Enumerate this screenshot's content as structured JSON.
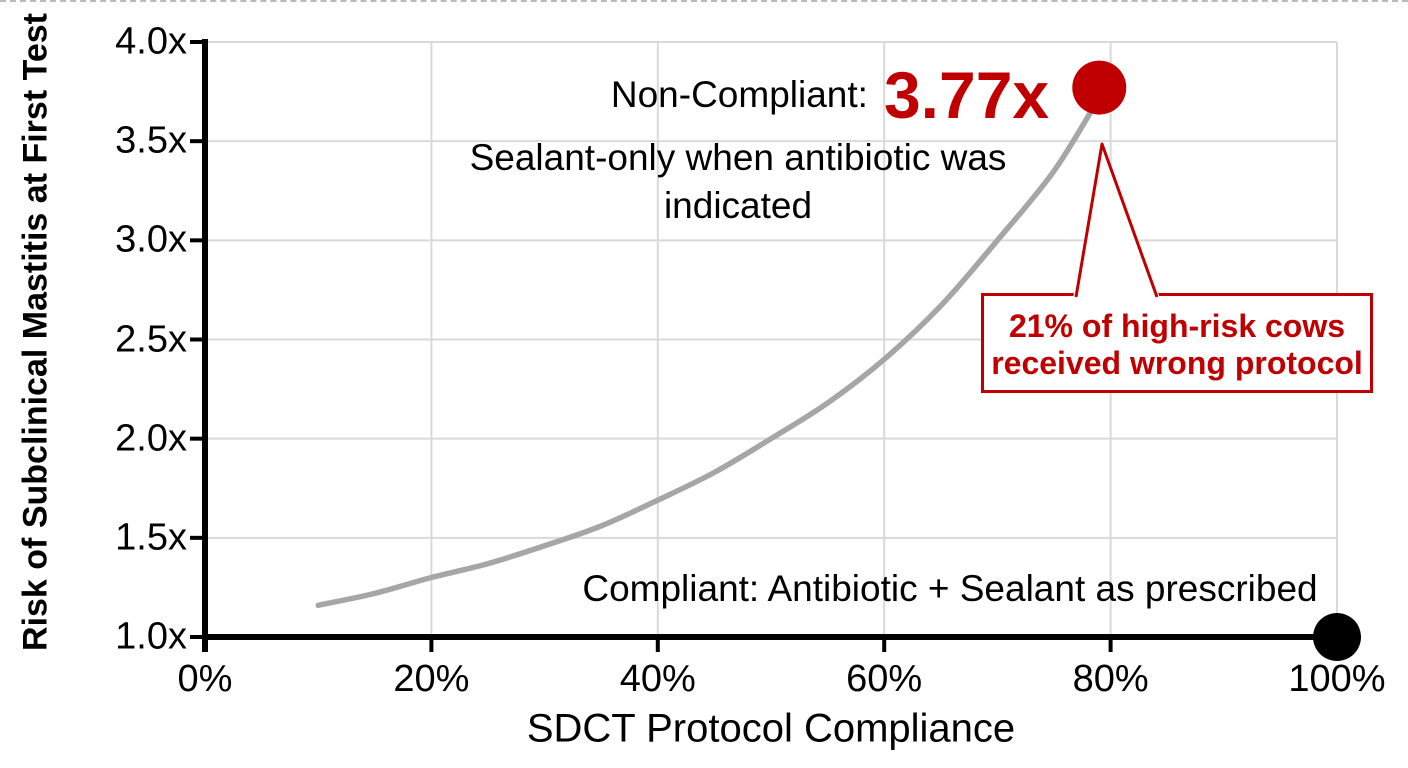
{
  "colors": {
    "red": "#c00000",
    "black": "#000000",
    "curve_gray": "#a6a6a6",
    "gridline_gray": "#d9d9d9",
    "background": "#ffffff"
  },
  "chart_data": {
    "type": "line",
    "title": "",
    "xlabel": "SDCT Protocol Compliance",
    "ylabel": "Risk of Subclinical Mastitis at First Test",
    "xlim": [
      0,
      100
    ],
    "ylim": [
      1.0,
      4.0
    ],
    "grid": true,
    "x_ticks": [
      {
        "value": 0,
        "label": "0%"
      },
      {
        "value": 20,
        "label": "20%"
      },
      {
        "value": 40,
        "label": "40%"
      },
      {
        "value": 60,
        "label": "60%"
      },
      {
        "value": 80,
        "label": "80%"
      },
      {
        "value": 100,
        "label": "100%"
      }
    ],
    "y_ticks": [
      {
        "value": 1.0,
        "label": "1.0x"
      },
      {
        "value": 1.5,
        "label": "1.5x"
      },
      {
        "value": 2.0,
        "label": "2.0x"
      },
      {
        "value": 2.5,
        "label": "2.5x"
      },
      {
        "value": 3.0,
        "label": "3.0x"
      },
      {
        "value": 3.5,
        "label": "3.5x"
      },
      {
        "value": 4.0,
        "label": "4.0x"
      }
    ],
    "series": [
      {
        "name": "risk-curve",
        "type": "line",
        "color": "#a6a6a6",
        "points": [
          [
            10,
            1.16
          ],
          [
            15,
            1.22
          ],
          [
            20,
            1.3
          ],
          [
            25,
            1.37
          ],
          [
            30,
            1.46
          ],
          [
            35,
            1.56
          ],
          [
            40,
            1.69
          ],
          [
            45,
            1.83
          ],
          [
            50,
            2.0
          ],
          [
            55,
            2.18
          ],
          [
            60,
            2.4
          ],
          [
            65,
            2.67
          ],
          [
            70,
            3.0
          ],
          [
            75,
            3.35
          ],
          [
            79,
            3.72
          ]
        ]
      },
      {
        "name": "non-compliant-point",
        "type": "point",
        "color": "#c00000",
        "x": 79,
        "y": 3.77,
        "radius": 27
      },
      {
        "name": "compliant-point",
        "type": "point",
        "color": "#000000",
        "x": 100,
        "y": 1.0,
        "radius": 24
      }
    ]
  },
  "annotations": {
    "non_compliant": {
      "label": "Non-Compliant:",
      "value": "3.77x",
      "desc_line1": "Sealant-only when antibiotic was",
      "desc_line2": "indicated"
    },
    "compliant": {
      "label": "Compliant: Antibiotic + Sealant as prescribed"
    },
    "callout": {
      "line1": "21% of high-risk cows",
      "line2": "received wrong protocol"
    }
  }
}
